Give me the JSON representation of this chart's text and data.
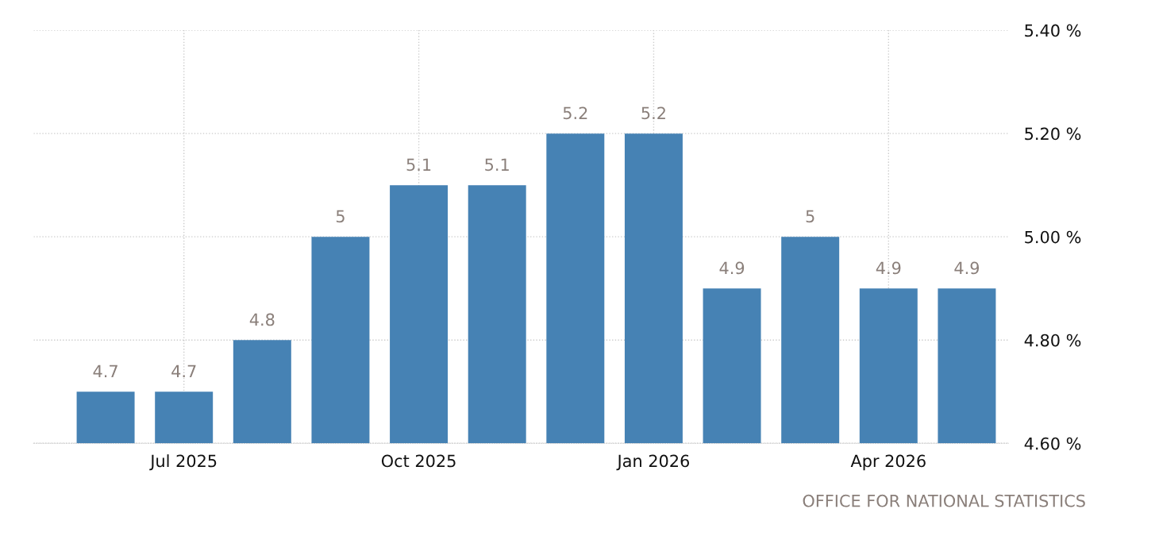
{
  "chart_data": {
    "type": "bar",
    "categories": [
      null,
      "Jul 2025",
      null,
      null,
      "Oct 2025",
      null,
      null,
      "Jan 2026",
      null,
      null,
      "Apr 2026",
      null
    ],
    "values": [
      4.7,
      4.7,
      4.8,
      5,
      5.1,
      5.1,
      5.2,
      5.2,
      4.9,
      5,
      4.9,
      4.9
    ],
    "color": "#4682b4",
    "ylim": [
      4.6,
      5.4
    ],
    "yticks": [
      {
        "value": 4.6,
        "label": "4.60 %"
      },
      {
        "value": 4.8,
        "label": "4.80 %"
      },
      {
        "value": 5.0,
        "label": "5.00 %"
      },
      {
        "value": 5.2,
        "label": "5.20 %"
      },
      {
        "value": 5.4,
        "label": "5.40 %"
      }
    ],
    "data_labels": true,
    "grid": true,
    "annotations": [
      "OFFICE FOR NATIONAL STATISTICS"
    ]
  }
}
